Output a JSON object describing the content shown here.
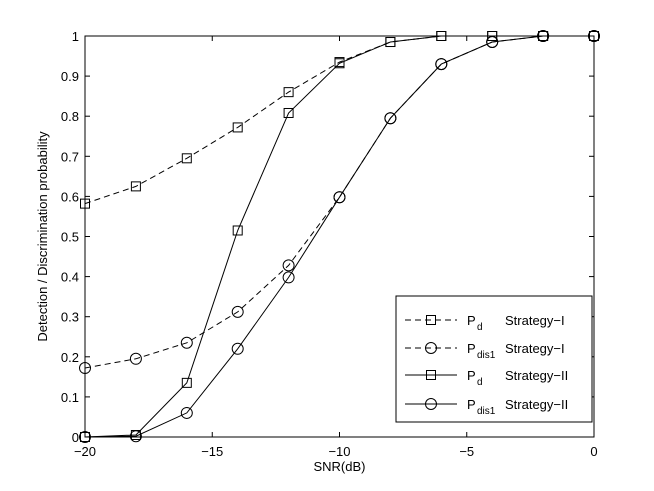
{
  "chart_data": {
    "type": "line",
    "xlabel": "SNR(dB)",
    "ylabel": "Detection / Discrimination probability",
    "xlim": [
      -20,
      0
    ],
    "ylim": [
      0,
      1
    ],
    "xticks": [
      "−20",
      "−15",
      "−10",
      "−5",
      "0"
    ],
    "yticks": [
      "0",
      "0.1",
      "0.2",
      "0.3",
      "0.4",
      "0.5",
      "0.6",
      "0.7",
      "0.8",
      "0.9",
      "1"
    ],
    "grid": false,
    "legend_position": "bottom-right",
    "x": [
      -20,
      -18,
      -16,
      -14,
      -12,
      -10,
      -8,
      -6,
      -4,
      -2,
      0
    ],
    "series": [
      {
        "name": "Strategy−I",
        "sym": "P",
        "sub": "d",
        "values": [
          0.582,
          0.625,
          0.695,
          0.772,
          0.86,
          0.935,
          0.985,
          1.0,
          1.0,
          1.0,
          1.0
        ],
        "line": "dashed",
        "marker": "square"
      },
      {
        "name": "Strategy−I",
        "sym": "P",
        "sub": "dis1",
        "values": [
          0.172,
          0.195,
          0.235,
          0.312,
          0.428,
          0.598,
          0.795,
          0.93,
          0.985,
          1.0,
          1.0
        ],
        "line": "dashed",
        "marker": "circle"
      },
      {
        "name": "Strategy−II",
        "sym": "P",
        "sub": "d",
        "values": [
          0.0,
          0.005,
          0.135,
          0.515,
          0.808,
          0.932,
          0.985,
          1.0,
          1.0,
          1.0,
          1.0
        ],
        "line": "solid",
        "marker": "square"
      },
      {
        "name": "Strategy−II",
        "sym": "P",
        "sub": "dis1",
        "values": [
          0.0,
          0.002,
          0.06,
          0.22,
          0.398,
          0.598,
          0.795,
          0.93,
          0.985,
          1.0,
          1.0
        ],
        "line": "solid",
        "marker": "circle"
      }
    ]
  }
}
